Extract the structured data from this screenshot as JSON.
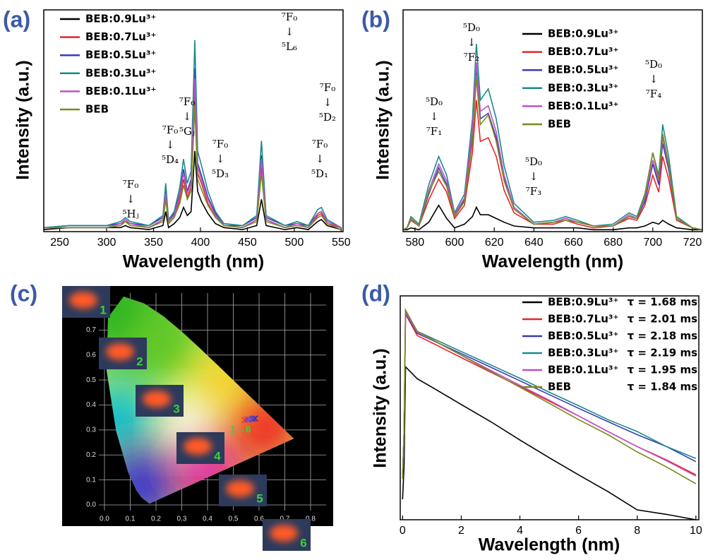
{
  "chart_data": [
    {
      "type": "line",
      "panel_label": "(a)",
      "x_label": "Wavelength (nm)",
      "y_label": "Intensity (a.u.)",
      "xlim": [
        233,
        552
      ],
      "xticks": [
        250,
        300,
        350,
        400,
        450,
        500,
        550
      ],
      "ylim": [
        0,
        110
      ],
      "x": [
        233,
        260,
        300,
        315,
        320,
        325,
        345,
        360,
        363,
        366,
        372,
        378,
        382,
        386,
        390,
        394,
        397,
        401,
        408,
        416,
        425,
        445,
        460,
        465,
        470,
        490,
        503,
        515,
        525,
        529,
        535,
        550
      ],
      "series": [
        {
          "name": "BEB:0.9Lu³⁺",
          "color": "#000000",
          "values": [
            1,
            2,
            2,
            2,
            3,
            2,
            1,
            3,
            10,
            2,
            4,
            7,
            12,
            8,
            10,
            40,
            20,
            15,
            9,
            4,
            2,
            1,
            3,
            16,
            3,
            1,
            2,
            1,
            5,
            6,
            3,
            1
          ]
        },
        {
          "name": "BEB:0.7Lu³⁺",
          "color": "#e8252a",
          "values": [
            2,
            2,
            2,
            4,
            5,
            4,
            2,
            6,
            17,
            4,
            7,
            16,
            26,
            17,
            22,
            68,
            29,
            24,
            14,
            7,
            3,
            2,
            6,
            32,
            6,
            2,
            4,
            2,
            8,
            9,
            4,
            2
          ]
        },
        {
          "name": "BEB:0.5Lu³⁺",
          "color": "#3a3db4",
          "values": [
            2,
            3,
            3,
            4,
            6,
            4,
            3,
            7,
            20,
            5,
            9,
            19,
            31,
            20,
            26,
            81,
            34,
            28,
            17,
            9,
            3,
            3,
            7,
            38,
            7,
            3,
            4,
            3,
            9,
            10,
            5,
            2
          ]
        },
        {
          "name": "BEB:0.3Lu³⁺",
          "color": "#1b8a8a",
          "values": [
            2,
            3,
            3,
            5,
            7,
            5,
            3,
            8,
            24,
            6,
            10,
            22,
            36,
            24,
            30,
            95,
            40,
            33,
            20,
            10,
            4,
            3,
            8,
            45,
            8,
            3,
            5,
            3,
            11,
            12,
            6,
            2
          ]
        },
        {
          "name": "BEB:0.1Lu³⁺",
          "color": "#c050c8",
          "values": [
            2,
            2,
            2,
            4,
            6,
            4,
            2,
            6,
            19,
            5,
            8,
            18,
            29,
            19,
            24,
            76,
            32,
            26,
            16,
            8,
            3,
            2,
            6,
            36,
            6,
            2,
            4,
            2,
            9,
            10,
            5,
            2
          ]
        },
        {
          "name": "BEB",
          "color": "#7a8a20",
          "values": [
            2,
            2,
            2,
            3,
            5,
            3,
            2,
            5,
            16,
            4,
            7,
            14,
            23,
            16,
            20,
            62,
            26,
            21,
            13,
            7,
            3,
            2,
            5,
            29,
            5,
            2,
            3,
            2,
            7,
            8,
            4,
            1
          ]
        }
      ],
      "annotations": [
        [
          "⁷F₀",
          "↓",
          "⁵Hⱼ"
        ],
        [
          "⁷F₀",
          "↓",
          "⁵D₄"
        ],
        [
          "⁷F₀",
          "↓",
          "⁵Gⱼ"
        ],
        [
          "⁷F₀",
          "↓",
          "⁵L₆"
        ],
        [
          "⁷F₀",
          "↓",
          "⁵D₃"
        ],
        [
          "⁷F₀",
          "↓",
          "⁵D₂"
        ],
        [
          "⁷F₀",
          "↓",
          "⁵D₁"
        ]
      ]
    },
    {
      "type": "line",
      "panel_label": "(b)",
      "x_label": "Wavelength (nm)",
      "y_label": "Intensity (a.u.)",
      "xlim": [
        574,
        725
      ],
      "xticks": [
        580,
        600,
        620,
        640,
        660,
        680,
        700,
        720
      ],
      "ylim": [
        0,
        118
      ],
      "x": [
        574,
        576,
        578,
        582,
        587,
        592,
        596,
        600,
        605,
        609,
        611,
        613,
        617,
        621,
        625,
        630,
        640,
        650,
        656,
        662,
        670,
        680,
        688,
        692,
        696,
        700,
        703,
        705,
        708,
        712,
        720,
        725
      ],
      "series": [
        {
          "name": "BEB:0.9Lu³⁺",
          "color": "#000000",
          "values": [
            1,
            1,
            2,
            1,
            5,
            14,
            7,
            2,
            4,
            8,
            13,
            9,
            9,
            7,
            5,
            3,
            2,
            2,
            2,
            2,
            1,
            1,
            2,
            2,
            3,
            5,
            4,
            6,
            4,
            2,
            1,
            1
          ]
        },
        {
          "name": "BEB:0.7Lu³⁺",
          "color": "#e8252a",
          "values": [
            1,
            2,
            6,
            3,
            17,
            28,
            21,
            7,
            14,
            42,
            70,
            48,
            50,
            40,
            22,
            10,
            4,
            4,
            6,
            4,
            2,
            3,
            7,
            6,
            14,
            30,
            21,
            40,
            28,
            6,
            2,
            1
          ]
        },
        {
          "name": "BEB:0.5Lu³⁺",
          "color": "#3a3db4",
          "values": [
            1,
            2,
            7,
            3,
            20,
            34,
            25,
            8,
            17,
            52,
            88,
            60,
            63,
            50,
            28,
            12,
            4,
            5,
            7,
            5,
            3,
            3,
            8,
            7,
            16,
            36,
            25,
            47,
            33,
            7,
            2,
            1
          ]
        },
        {
          "name": "BEB:0.3Lu³⁺",
          "color": "#1b8a8a",
          "values": [
            1,
            2,
            8,
            4,
            25,
            40,
            30,
            10,
            20,
            60,
            100,
            70,
            76,
            60,
            35,
            15,
            5,
            6,
            8,
            6,
            3,
            4,
            10,
            8,
            20,
            42,
            30,
            57,
            40,
            8,
            2,
            1
          ]
        },
        {
          "name": "BEB:0.1Lu³⁺",
          "color": "#c050c8",
          "values": [
            1,
            2,
            7,
            3,
            22,
            36,
            27,
            9,
            18,
            55,
            90,
            64,
            67,
            53,
            30,
            13,
            4,
            5,
            7,
            5,
            3,
            3,
            9,
            7,
            18,
            38,
            27,
            50,
            35,
            7,
            2,
            1
          ]
        },
        {
          "name": "BEB",
          "color": "#7a8a20",
          "values": [
            1,
            2,
            7,
            3,
            21,
            32,
            24,
            8,
            16,
            48,
            82,
            57,
            62,
            48,
            27,
            12,
            4,
            5,
            6,
            5,
            3,
            3,
            8,
            7,
            19,
            42,
            28,
            52,
            36,
            7,
            2,
            1
          ]
        }
      ],
      "annotations": [
        [
          "⁵D₀",
          "↓",
          "⁷F₁"
        ],
        [
          "⁵D₀",
          "↓",
          "⁷F₂"
        ],
        [
          "⁵D₀",
          "↓",
          "⁷F₃"
        ],
        [
          "⁵D₀",
          "↓",
          "⁷F₄"
        ]
      ]
    },
    {
      "type": "cie",
      "panel_label": "(c)",
      "xlim": [
        0,
        0.8
      ],
      "ylim": [
        0,
        0.8
      ],
      "xticks": [
        {
          "value": 0,
          "label": "0.0"
        },
        0.1,
        0.2,
        0.3,
        0.4,
        0.5,
        0.6,
        0.7,
        0.8
      ],
      "yticks": [
        {
          "value": 0,
          "label": "0.0"
        },
        0.1,
        0.2,
        0.3,
        0.4,
        0.5,
        0.6,
        0.7,
        0.8
      ],
      "x": [
        0.545,
        0.555,
        0.565,
        0.575,
        0.58,
        0.585
      ],
      "y": [
        0.34,
        0.342,
        0.343,
        0.344,
        0.345,
        0.346
      ],
      "point_colors": [
        "#e03040",
        "#6a40c0",
        "#8050c0",
        "#4040c0",
        "#9040a0",
        "#3030b0"
      ],
      "annotation": "1→6",
      "photos": [
        "1",
        "2",
        "3",
        "4",
        "5",
        "6"
      ]
    },
    {
      "type": "line",
      "panel_label": "(d)",
      "x_label": "Wavelength (nm)",
      "y_label": "Intensity (a.u.)",
      "xlim": [
        -0.08,
        10.1
      ],
      "xticks": [
        0,
        2,
        4,
        6,
        8,
        10
      ],
      "ylim": [
        0.5,
        1000
      ],
      "log_y": true,
      "x": [
        0,
        0.05,
        0.1,
        0.5,
        1,
        2,
        3,
        4,
        5,
        6,
        7,
        8,
        9,
        10
      ],
      "series": [
        {
          "name": "BEB:0.9Lu³⁺",
          "label": "τ = 1.68 ms",
          "color": "#000000",
          "values": [
            1,
            3,
            90,
            60,
            45,
            25,
            14,
            7.5,
            4.1,
            2.3,
            1.3,
            0.7,
            0.6,
            0.5
          ]
        },
        {
          "name": "BEB:0.7Lu³⁺",
          "label": "τ = 2.01 ms",
          "color": "#e8252a",
          "values": [
            2,
            9,
            540,
            260,
            203,
            123,
            75,
            46,
            28,
            17,
            10,
            6,
            3.8,
            2.3
          ]
        },
        {
          "name": "BEB:0.5Lu³⁺",
          "label": "τ = 2.18 ms",
          "color": "#3a3db4",
          "values": [
            2,
            10,
            560,
            280,
            223,
            141,
            89,
            56,
            35,
            22,
            14,
            9,
            6,
            3.6
          ]
        },
        {
          "name": "BEB:0.3Lu³⁺",
          "label": "τ = 2.19 ms",
          "color": "#1b8a8a",
          "values": [
            2,
            10,
            600,
            300,
            239,
            151,
            96,
            61,
            38,
            24,
            15,
            10,
            6,
            4
          ]
        },
        {
          "name": "BEB:0.1Lu³⁺",
          "label": "τ = 1.95 ms",
          "color": "#c050c8",
          "values": [
            2,
            10,
            580,
            290,
            225,
            134,
            80,
            48,
            29,
            17,
            10,
            6,
            3.7,
            2.2
          ]
        },
        {
          "name": "BEB",
          "label": "τ = 1.84 ms",
          "color": "#7a8a20",
          "values": [
            2,
            10,
            620,
            300,
            229,
            133,
            77,
            45,
            26,
            15,
            9,
            5,
            3,
            1.7
          ]
        }
      ]
    }
  ]
}
